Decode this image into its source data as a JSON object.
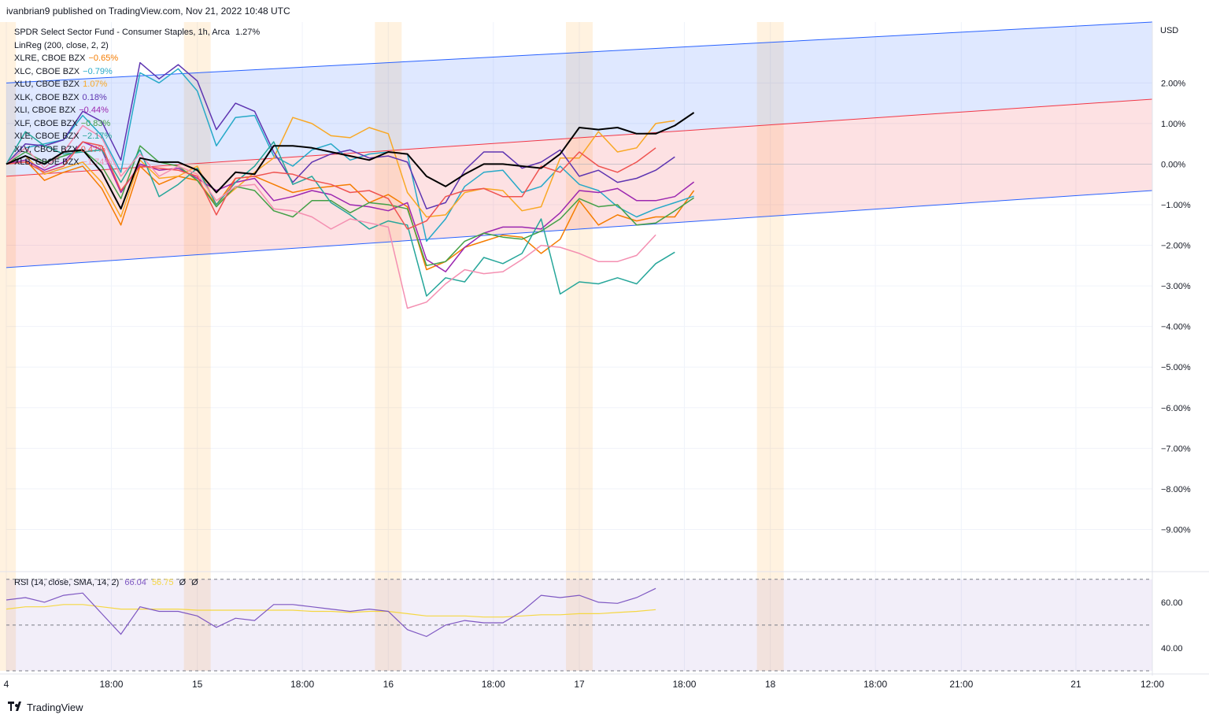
{
  "header": {
    "publisher": "ivanbrian9 published on TradingView.com, Nov 21, 2022 10:48 UTC"
  },
  "footer": {
    "brand": "TradingView",
    "logo_icon": "tradingview-logo-icon"
  },
  "price_axis": {
    "currency": "USD",
    "ticks": [
      {
        "v": 2,
        "label": "2.00%"
      },
      {
        "v": 1,
        "label": "1.00%"
      },
      {
        "v": 0,
        "label": "0.00%"
      },
      {
        "v": -1,
        "label": "−1.00%"
      },
      {
        "v": -2,
        "label": "−2.00%"
      },
      {
        "v": -3,
        "label": "−3.00%"
      },
      {
        "v": -4,
        "label": "−4.00%"
      },
      {
        "v": -5,
        "label": "−5.00%"
      },
      {
        "v": -6,
        "label": "−6.00%"
      },
      {
        "v": -7,
        "label": "−7.00%"
      },
      {
        "v": -8,
        "label": "−8.00%"
      },
      {
        "v": -9,
        "label": "−9.00%"
      }
    ]
  },
  "time_axis": {
    "ticks": [
      {
        "t": 0,
        "label": "4"
      },
      {
        "t": 5.5,
        "label": "18:00"
      },
      {
        "t": 10,
        "label": "15"
      },
      {
        "t": 15.5,
        "label": "18:00"
      },
      {
        "t": 20,
        "label": "16"
      },
      {
        "t": 25.5,
        "label": "18:00"
      },
      {
        "t": 30,
        "label": "17"
      },
      {
        "t": 35.5,
        "label": "18:00"
      },
      {
        "t": 40,
        "label": "18"
      },
      {
        "t": 45.5,
        "label": "18:00"
      },
      {
        "t": 50,
        "label": "21:00"
      },
      {
        "t": 56,
        "label": "21"
      },
      {
        "t": 60,
        "label": "12:00"
      }
    ]
  },
  "legend": {
    "title": "SPDR Select Sector Fund - Consumer Staples, 1h, Arca",
    "title_value": "1.27%",
    "indicator": "LinReg (200, close, 2, 2)",
    "rows": [
      {
        "label": "XLRE, CBOE BZX",
        "value": "−0.65%",
        "color": "#f57c00"
      },
      {
        "label": "XLC, CBOE BZX",
        "value": "−0.79%",
        "color": "#26a9c8"
      },
      {
        "label": "XLU, CBOE BZX",
        "value": "1.07%",
        "color": "#f9a825"
      },
      {
        "label": "XLK, CBOE BZX",
        "value": "0.18%",
        "color": "#5e35b1"
      },
      {
        "label": "XLI, CBOE BZX",
        "value": "−0.44%",
        "color": "#9c27b0"
      },
      {
        "label": "XLF, CBOE BZX",
        "value": "−0.83%",
        "color": "#43a047"
      },
      {
        "label": "XLE, CBOE BZX",
        "value": "−2.17%",
        "color": "#26a69a"
      },
      {
        "label": "XLV, CBOE BZX",
        "value": "0.4?%",
        "color": "#ef5350"
      },
      {
        "label": "XLB, CBOE BZX",
        "value": "−1.74%",
        "color": "#f48fb1"
      }
    ]
  },
  "rsi": {
    "label": "RSI (14, close, SMA, 14, 2)",
    "value": "66.04",
    "sma_value": "56.75",
    "extra1": "Ø",
    "extra2": "Ø",
    "ticks": [
      {
        "v": 60,
        "label": "60.00"
      },
      {
        "v": 40,
        "label": "40.00"
      }
    ]
  },
  "chart_data": {
    "type": "line",
    "title": "SPDR Select Sector Fund - Consumer Staples, 1h, Arca",
    "ylabel": "USD (% change)",
    "ylim": [
      -10,
      3.5
    ],
    "xlim": [
      0,
      60
    ],
    "linreg": {
      "upper": [
        2.0,
        3.5
      ],
      "middle": [
        -0.3,
        1.6
      ],
      "lower": [
        -2.55,
        -0.65
      ]
    },
    "session_bands": [
      [
        -0.5,
        0.5
      ],
      [
        9.3,
        10.7
      ],
      [
        19.3,
        20.7
      ],
      [
        29.3,
        30.7
      ],
      [
        39.3,
        40.7
      ]
    ],
    "x": [
      0,
      1,
      2,
      3,
      4,
      5,
      6,
      7,
      8,
      9,
      10,
      11,
      12,
      13,
      14,
      15,
      16,
      17,
      18,
      19,
      20,
      21,
      22,
      23,
      24,
      25,
      26,
      27,
      28,
      29,
      30,
      31,
      32,
      33,
      34,
      35,
      36,
      37,
      38,
      39,
      40,
      41,
      42,
      43,
      44,
      45,
      46,
      47,
      48
    ],
    "series": [
      {
        "name": "XLP",
        "color": "#000000",
        "width": 2,
        "values": [
          0,
          0.2,
          0.0,
          0.3,
          0.35,
          -0.2,
          -1.1,
          0.15,
          0.05,
          0.05,
          -0.15,
          -0.7,
          -0.2,
          -0.25,
          0.45,
          0.45,
          0.4,
          0.3,
          0.2,
          0.1,
          0.3,
          0.25,
          -0.3,
          -0.55,
          -0.25,
          0,
          0,
          -0.05,
          -0.1,
          0.25,
          0.9,
          0.85,
          0.9,
          0.75,
          0.75,
          0.95,
          1.27,
          null,
          null,
          null,
          null,
          null,
          null,
          null,
          null,
          null,
          null,
          null,
          null
        ]
      },
      {
        "name": "XLRE",
        "color": "#f57c00",
        "values": [
          0,
          0.1,
          -0.4,
          -0.2,
          -0.05,
          -0.6,
          -1.5,
          -0.05,
          -0.5,
          -0.3,
          -0.4,
          -1.0,
          -0.35,
          -0.3,
          -0.5,
          -0.7,
          -0.6,
          -0.55,
          -0.5,
          -0.95,
          -0.75,
          -1.05,
          -2.6,
          -2.4,
          -2.05,
          -1.9,
          -1.75,
          -1.8,
          -2.2,
          -1.85,
          -0.9,
          -1.5,
          -1.25,
          -1.4,
          -1.3,
          -1.3,
          -0.65,
          null,
          null,
          null,
          null,
          null,
          null,
          null,
          null,
          null,
          null,
          null,
          null
        ]
      },
      {
        "name": "XLC",
        "color": "#26a9c8",
        "values": [
          0,
          0.4,
          0.5,
          0.6,
          1.2,
          0.7,
          -0.2,
          2.25,
          2.0,
          2.35,
          1.8,
          0.45,
          1.15,
          1.2,
          0.2,
          -0.05,
          0.35,
          0.5,
          0.1,
          0.25,
          0.3,
          0.25,
          -1.9,
          -1.35,
          -0.55,
          -0.2,
          -0.15,
          -0.7,
          -0.55,
          -0.05,
          -0.5,
          -0.65,
          -1.05,
          -1.3,
          -1.1,
          -0.95,
          -0.79,
          null,
          null,
          null,
          null,
          null,
          null,
          null,
          null,
          null,
          null,
          null,
          null
        ]
      },
      {
        "name": "XLU",
        "color": "#f9a825",
        "values": [
          0,
          0.2,
          -0.25,
          -0.1,
          0.05,
          -0.45,
          -1.3,
          0.1,
          -0.35,
          -0.3,
          -0.05,
          -1.0,
          -0.6,
          -0.2,
          0.15,
          1.15,
          1.0,
          0.7,
          0.65,
          0.9,
          0.75,
          -0.7,
          -1.3,
          -1.25,
          -0.7,
          -0.6,
          -0.65,
          -1.15,
          -1.05,
          0.15,
          0.15,
          0.8,
          0.3,
          0.4,
          1.0,
          1.07,
          null,
          null,
          null,
          null,
          null,
          null,
          null,
          null,
          null,
          null,
          null,
          null,
          null
        ]
      },
      {
        "name": "XLK",
        "color": "#5e35b1",
        "values": [
          0,
          0.5,
          0.45,
          0.6,
          1.3,
          1.05,
          0.1,
          2.5,
          2.1,
          2.45,
          2.05,
          0.85,
          1.5,
          1.3,
          0.3,
          -0.45,
          0.05,
          0.25,
          0.35,
          0.15,
          0.2,
          0.05,
          -1.1,
          -0.95,
          -0.15,
          0.3,
          0.3,
          -0.1,
          0.05,
          0.35,
          -0.3,
          -0.15,
          -0.45,
          -0.35,
          -0.15,
          0.18,
          null,
          null,
          null,
          null,
          null,
          null,
          null,
          null,
          null,
          null,
          null,
          null,
          null
        ]
      },
      {
        "name": "XLI",
        "color": "#9c27b0",
        "values": [
          0,
          0.1,
          -0.15,
          0.05,
          0.55,
          0.35,
          -0.7,
          0.0,
          -0.15,
          -0.1,
          -0.35,
          -0.65,
          -0.45,
          -0.35,
          -0.9,
          -0.8,
          -0.65,
          -0.75,
          -1.0,
          -1.05,
          -1.15,
          -0.95,
          -2.35,
          -2.65,
          -2.05,
          -1.7,
          -1.55,
          -1.55,
          -1.6,
          -1.2,
          -0.65,
          -0.7,
          -0.6,
          -0.9,
          -0.9,
          -0.8,
          -0.44,
          null,
          null,
          null,
          null,
          null,
          null,
          null,
          null,
          null,
          null,
          null,
          null
        ]
      },
      {
        "name": "XLF",
        "color": "#43a047",
        "values": [
          0,
          0.3,
          0.05,
          0.2,
          0.35,
          -0.05,
          -0.85,
          0.45,
          0.05,
          -0.05,
          -0.4,
          -1.05,
          -0.55,
          -0.65,
          -1.15,
          -1.3,
          -0.9,
          -0.9,
          -1.2,
          -0.95,
          -1.0,
          -1.1,
          -2.5,
          -2.4,
          -1.9,
          -1.7,
          -1.8,
          -1.85,
          -1.65,
          -1.35,
          -0.85,
          -1.05,
          -1.0,
          -1.5,
          -1.45,
          -1.15,
          -0.83,
          null,
          null,
          null,
          null,
          null,
          null,
          null,
          null,
          null,
          null,
          null,
          null
        ]
      },
      {
        "name": "XLE",
        "color": "#26a69a",
        "values": [
          0,
          0.8,
          0.45,
          0.25,
          0.3,
          0.35,
          -0.45,
          0.35,
          -0.8,
          -0.5,
          -0.1,
          -1.0,
          -0.45,
          -0.05,
          0.55,
          -0.5,
          -0.3,
          -0.95,
          -1.25,
          -1.6,
          -1.4,
          -1.5,
          -3.25,
          -2.8,
          -2.9,
          -2.3,
          -2.45,
          -2.2,
          -1.35,
          -3.2,
          -2.9,
          -2.95,
          -2.8,
          -2.95,
          -2.45,
          -2.17,
          null,
          null,
          null,
          null,
          null,
          null,
          null,
          null,
          null,
          null,
          null,
          null,
          null
        ]
      },
      {
        "name": "XLV",
        "color": "#ef5350",
        "values": [
          0,
          0.05,
          -0.2,
          -0.05,
          0.55,
          0.45,
          -0.65,
          -0.05,
          -0.1,
          -0.15,
          -0.3,
          -1.25,
          -0.35,
          -0.3,
          -0.2,
          -0.25,
          -0.4,
          -0.5,
          -0.7,
          -0.65,
          -0.85,
          -1.6,
          -1.4,
          -0.8,
          -0.65,
          -0.6,
          -0.8,
          -0.8,
          -0.05,
          -0.2,
          0.3,
          -0.05,
          -0.2,
          0.05,
          0.4,
          null,
          null,
          null,
          null,
          null,
          null,
          null,
          null,
          null,
          null,
          null,
          null,
          null,
          null
        ]
      },
      {
        "name": "XLB",
        "color": "#f48fb1",
        "values": [
          0,
          0.4,
          -0.1,
          0.3,
          0.95,
          0.65,
          -0.3,
          0.25,
          -0.3,
          -0.05,
          -0.25,
          -0.9,
          -0.55,
          -0.5,
          -1.1,
          -1.15,
          -1.3,
          -1.6,
          -1.35,
          -1.45,
          -1.55,
          -3.55,
          -3.4,
          -2.95,
          -2.6,
          -2.7,
          -2.65,
          -2.35,
          -2.0,
          -2.05,
          -2.2,
          -2.4,
          -2.4,
          -2.25,
          -1.74,
          null,
          null,
          null,
          null,
          null,
          null,
          null,
          null,
          null,
          null,
          null,
          null,
          null,
          null
        ]
      }
    ],
    "rsi_chart": {
      "ylim": [
        30,
        72
      ],
      "bands": [
        70,
        50,
        30
      ],
      "rsi": [
        61,
        62,
        60,
        63,
        64,
        55,
        46,
        58,
        56,
        56,
        54,
        49,
        53,
        52,
        59,
        59,
        58,
        57,
        56,
        57,
        56,
        48,
        45,
        50,
        52,
        51,
        51,
        56,
        63,
        62,
        63,
        60,
        59.5,
        62,
        66.04,
        null,
        null,
        null,
        null,
        null,
        null,
        null,
        null,
        null,
        null,
        null,
        null,
        null,
        null
      ],
      "sma": [
        57,
        58,
        58,
        59,
        59,
        58,
        57,
        57,
        57,
        57,
        56.5,
        56.5,
        56.5,
        56.5,
        56.5,
        56.5,
        56,
        56,
        55.5,
        56,
        56,
        55,
        54,
        54,
        54,
        53.5,
        53.5,
        54,
        54.5,
        54.5,
        55,
        55,
        55.5,
        56,
        56.75,
        null,
        null,
        null,
        null,
        null,
        null,
        null,
        null,
        null,
        null,
        null,
        null,
        null,
        null
      ]
    }
  }
}
